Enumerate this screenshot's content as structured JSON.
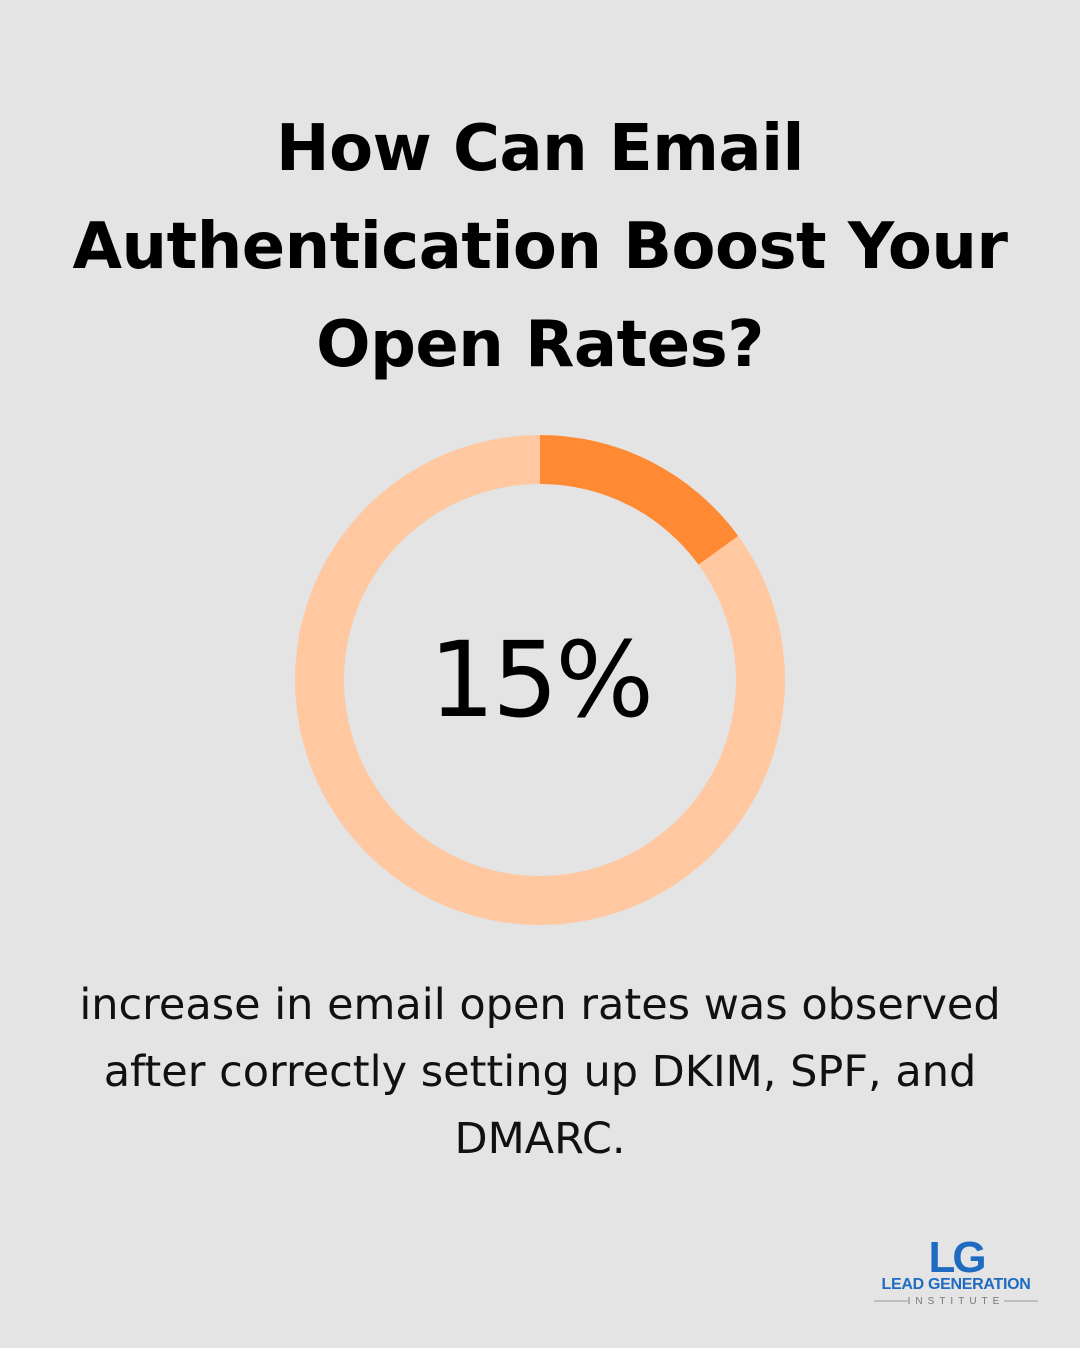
{
  "title_lines": [
    "How Can Email",
    "Authentication Boost Your",
    "Open Rates?"
  ],
  "chart_data": {
    "type": "pie",
    "variant": "donut",
    "slices": [
      {
        "label": "",
        "value": 15,
        "color": "#ff8a33"
      },
      {
        "label": "",
        "value": 85,
        "color": "#ffc8a0"
      }
    ],
    "center_label": "15%"
  },
  "description_lines": [
    "increase in email open rates was observed",
    "after correctly setting up DKIM, SPF, and",
    "DMARC."
  ],
  "logo": {
    "mark": "LG",
    "name": "LEAD GENERATION",
    "subname": "INSTITUTE",
    "colors": {
      "primary": "#1f6bc2",
      "secondary": "#8a8a8a"
    }
  }
}
